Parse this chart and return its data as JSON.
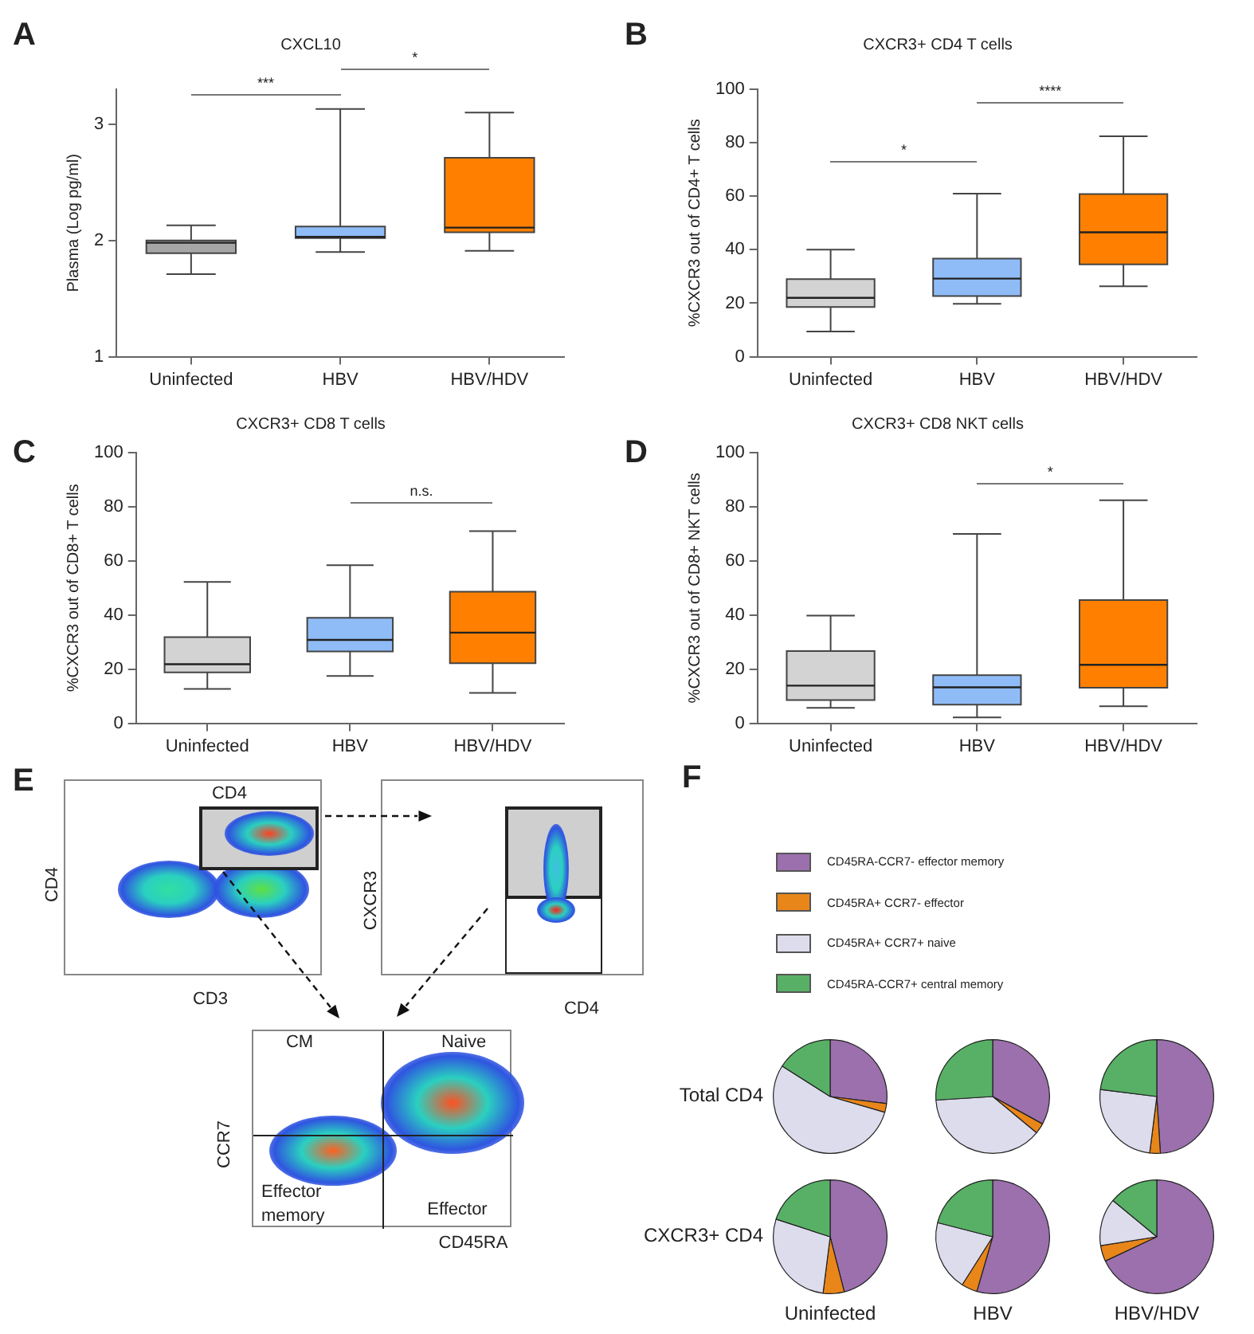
{
  "chart_data": [
    {
      "type": "box",
      "title": "CXCL10",
      "ylabel": "Plasma (Log pg/ml)",
      "categories": [
        "Uninfected",
        "HBV",
        "HBV/HDV"
      ],
      "colors": [
        "#a6a6a6",
        "#8fbcf7",
        "#ff8000"
      ],
      "boxes": [
        {
          "low": 1.71,
          "q1": 1.89,
          "median": 1.98,
          "q3": 2.0,
          "high": 2.13
        },
        {
          "low": 1.9,
          "q1": 2.02,
          "median": 2.03,
          "q3": 2.12,
          "high": 3.13
        },
        {
          "low": 1.91,
          "q1": 2.07,
          "median": 2.11,
          "q3": 2.71,
          "high": 3.1
        }
      ],
      "ylim": [
        1,
        3.3
      ],
      "yticks": [
        1,
        2,
        3
      ],
      "annotations": [
        "A",
        "***",
        "*"
      ]
    },
    {
      "type": "box",
      "title": "CXCR3+ CD4 T cells",
      "ylabel": "%CXCR3 out of CD4+ T cells",
      "categories": [
        "Uninfected",
        "HBV",
        "HBV/HDV"
      ],
      "colors": [
        "#d3d3d3",
        "#8fbcf7",
        "#ff8000"
      ],
      "boxes": [
        {
          "low": 9.4,
          "q1": 18.6,
          "median": 22,
          "q3": 29,
          "high": 40
        },
        {
          "low": 19.8,
          "q1": 22.7,
          "median": 29.2,
          "q3": 36.7,
          "high": 61
        },
        {
          "low": 26.3,
          "q1": 34.5,
          "median": 46.5,
          "q3": 60.8,
          "high": 82.4
        }
      ],
      "ylim": [
        0,
        100
      ],
      "yticks": [
        0,
        20,
        40,
        60,
        80,
        100
      ],
      "annotations": [
        "B",
        "*",
        "****"
      ]
    },
    {
      "type": "box",
      "title": "CXCR3+ CD8 T cells",
      "ylabel": "%CXCR3 out of CD8+ T cells",
      "categories": [
        "Uninfected",
        "HBV",
        "HBV/HDV"
      ],
      "colors": [
        "#d3d3d3",
        "#8fbcf7",
        "#ff8000"
      ],
      "boxes": [
        {
          "low": 12.7,
          "q1": 18.8,
          "median": 21.8,
          "q3": 31.8,
          "high": 52.2
        },
        {
          "low": 17.5,
          "q1": 26.5,
          "median": 30.8,
          "q3": 39,
          "high": 58.4
        },
        {
          "low": 11.2,
          "q1": 22.2,
          "median": 33.5,
          "q3": 48.6,
          "high": 71
        }
      ],
      "ylim": [
        0,
        100
      ],
      "yticks": [
        0,
        20,
        40,
        60,
        80,
        100
      ],
      "annotations": [
        "C",
        "n.s."
      ]
    },
    {
      "type": "box",
      "title": "CXCR3+ CD8 NKT cells",
      "ylabel": "%CXCR3 out of CD8+ NKT cells",
      "categories": [
        "Uninfected",
        "HBV",
        "HBV/HDV"
      ],
      "colors": [
        "#d3d3d3",
        "#8fbcf7",
        "#ff8000"
      ],
      "boxes": [
        {
          "low": 5.7,
          "q1": 8.6,
          "median": 13.9,
          "q3": 26.7,
          "high": 39.8
        },
        {
          "low": 2.2,
          "q1": 6.9,
          "median": 13.3,
          "q3": 17.8,
          "high": 70
        },
        {
          "low": 6.3,
          "q1": 13.1,
          "median": 21.6,
          "q3": 45.5,
          "high": 82.4
        }
      ],
      "ylim": [
        0,
        100
      ],
      "yticks": [
        0,
        20,
        40,
        60,
        80,
        100
      ],
      "annotations": [
        "D",
        "*"
      ]
    },
    {
      "type": "other",
      "annotations": [
        "E",
        "CD4",
        "CD4",
        "CD3",
        "CXCR3",
        "CD4",
        "CM",
        "Naive",
        "CCR7",
        "Effector memory",
        "Effector",
        "CD45RA"
      ]
    },
    {
      "type": "pie",
      "ylabel": "Total CD4",
      "legend": "top",
      "annotations": [
        "F"
      ],
      "categories": [
        "CD45RA-CCR7- effector memory",
        "CD45RA+ CCR7- effector",
        "CD45RA+ CCR7+ naive",
        "CD45RA-CCR7+ central memory"
      ],
      "values": [
        27,
        2.5,
        54.5,
        16
      ],
      "colors": [
        "#9b70ad",
        "#e8861a",
        "#dcdcec",
        "#58b066"
      ]
    },
    {
      "type": "pie",
      "categories": [
        null,
        null,
        null,
        null
      ],
      "values": [
        33,
        3,
        38,
        26
      ],
      "colors": [
        "#9b70ad",
        "#e8861a",
        "#dcdcec",
        "#58b066"
      ]
    },
    {
      "type": "pie",
      "categories": [
        null,
        null,
        null,
        null
      ],
      "values": [
        49,
        3,
        25,
        23
      ],
      "colors": [
        "#9b70ad",
        "#e8861a",
        "#dcdcec",
        "#58b066"
      ]
    },
    {
      "type": "pie",
      "ylabel": "CXCR3+ CD4",
      "xlabel": "Uninfected",
      "categories": [
        null,
        null,
        null,
        null
      ],
      "values": [
        46,
        6,
        28,
        20
      ],
      "colors": [
        "#9b70ad",
        "#e8861a",
        "#dcdcec",
        "#58b066"
      ]
    },
    {
      "type": "pie",
      "xlabel": "HBV",
      "categories": [
        null,
        null,
        null,
        null
      ],
      "values": [
        54.5,
        4.5,
        20,
        21
      ],
      "colors": [
        "#9b70ad",
        "#e8861a",
        "#dcdcec",
        "#58b066"
      ]
    },
    {
      "type": "pie",
      "xlabel": "HBV/HDV",
      "categories": [
        null,
        null,
        null,
        null
      ],
      "values": [
        68,
        4.5,
        13.5,
        14
      ],
      "colors": [
        "#9b70ad",
        "#e8861a",
        "#dcdcec",
        "#58b066"
      ]
    }
  ]
}
